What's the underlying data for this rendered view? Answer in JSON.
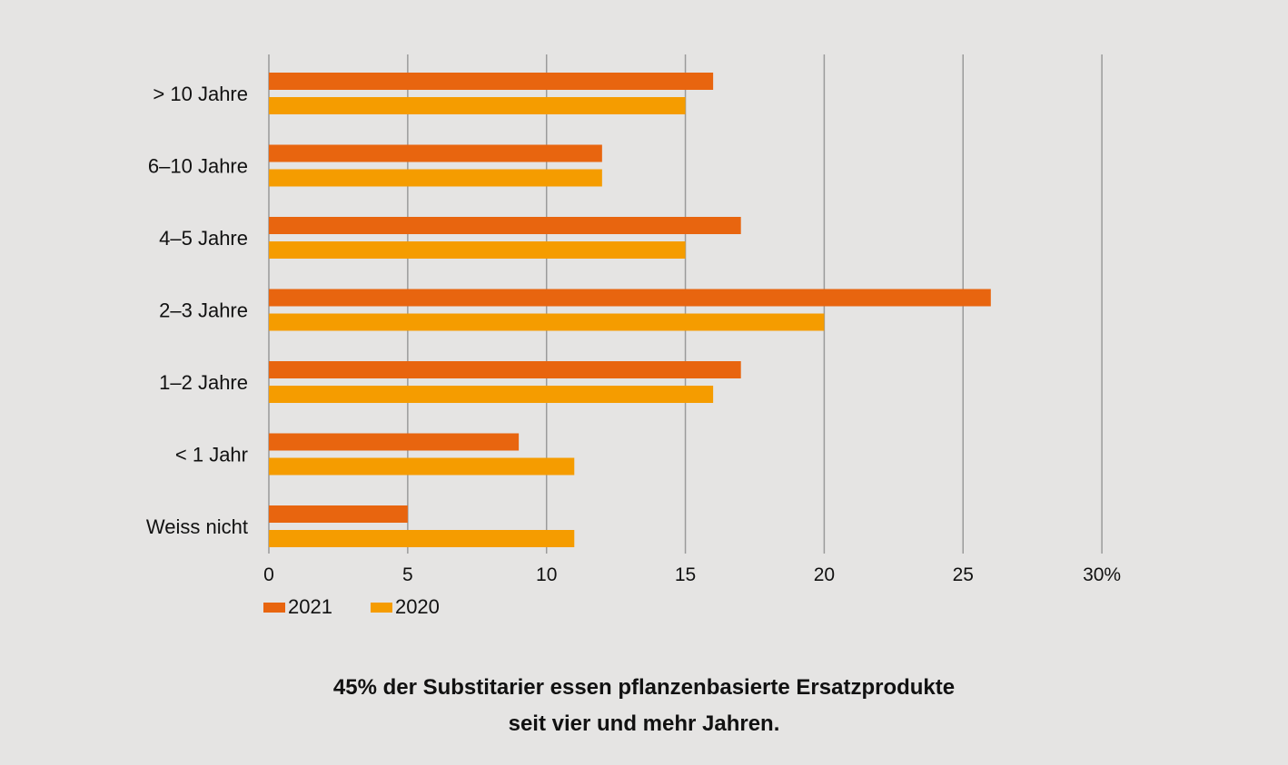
{
  "colors": {
    "series_2021": "#e8650f",
    "series_2020": "#f59c00",
    "gridline": "#9a9a9a",
    "background": "#e5e4e3"
  },
  "chart_data": {
    "type": "bar",
    "orientation": "horizontal",
    "categories": [
      "> 10 Jahre",
      "6–10 Jahre",
      "4–5 Jahre",
      "2–3 Jahre",
      "1–2 Jahre",
      "< 1 Jahr",
      "Weiss nicht"
    ],
    "series": [
      {
        "name": "2021",
        "values": [
          16,
          12,
          17,
          26,
          17,
          9,
          5
        ]
      },
      {
        "name": "2020",
        "values": [
          15,
          12,
          15,
          20,
          16,
          11,
          11
        ]
      }
    ],
    "xlim": [
      0,
      30
    ],
    "ticks": [
      "0",
      "5",
      "10",
      "15",
      "20",
      "25",
      "30%"
    ],
    "grid": "vertical",
    "legend": "bottom-left"
  },
  "caption": {
    "line1": "45% der Substitarier essen pflanzenbasierte Ersatzprodukte",
    "line2": "seit vier und mehr Jahren."
  }
}
